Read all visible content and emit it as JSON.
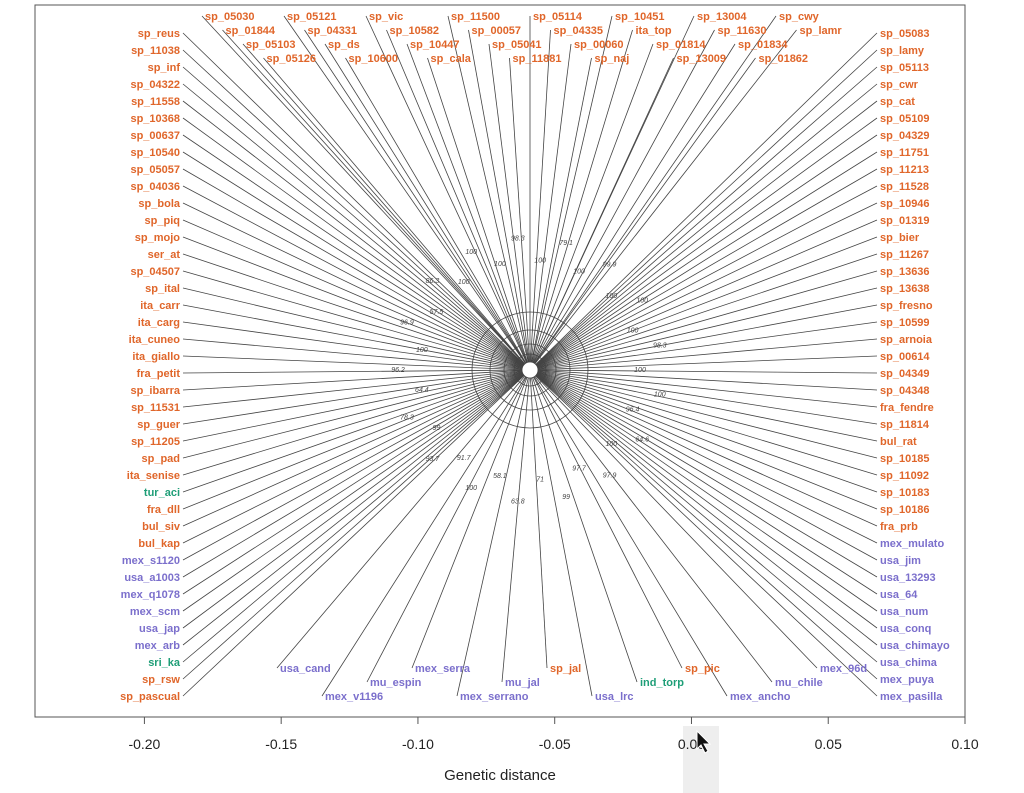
{
  "chart_data": {
    "type": "tree",
    "title": "",
    "xlabel": "Genetic distance",
    "xlim": [
      -0.24,
      0.1
    ],
    "x_ticks": [
      "-0.20",
      "-0.15",
      "-0.10",
      "-0.05",
      "0.00",
      "0.05",
      "0.10"
    ],
    "x_tick_values": [
      -0.2,
      -0.15,
      -0.1,
      -0.05,
      0.0,
      0.05,
      0.1
    ],
    "group_colors": {
      "orange": "#E0662A",
      "purple": "#7B6FCC",
      "green": "#1E9E77"
    },
    "tips": [
      {
        "label": "bul_kap",
        "group": "orange"
      },
      {
        "label": "bul_siv",
        "group": "orange"
      },
      {
        "label": "fra_dll",
        "group": "orange"
      },
      {
        "label": "tur_aci",
        "group": "green"
      },
      {
        "label": "ita_senise",
        "group": "orange"
      },
      {
        "label": "sp_pad",
        "group": "orange"
      },
      {
        "label": "sp_11205",
        "group": "orange"
      },
      {
        "label": "sp_guer",
        "group": "orange"
      },
      {
        "label": "sp_11531",
        "group": "orange"
      },
      {
        "label": "sp_ibarra",
        "group": "orange"
      },
      {
        "label": "fra_petit",
        "group": "orange"
      },
      {
        "label": "ita_giallo",
        "group": "orange"
      },
      {
        "label": "ita_cuneo",
        "group": "orange"
      },
      {
        "label": "ita_carg",
        "group": "orange"
      },
      {
        "label": "ita_carr",
        "group": "orange"
      },
      {
        "label": "sp_ital",
        "group": "orange"
      },
      {
        "label": "sp_04507",
        "group": "orange"
      },
      {
        "label": "ser_at",
        "group": "orange"
      },
      {
        "label": "sp_mojo",
        "group": "orange"
      },
      {
        "label": "sp_piq",
        "group": "orange"
      },
      {
        "label": "sp_bola",
        "group": "orange"
      },
      {
        "label": "sp_04036",
        "group": "orange"
      },
      {
        "label": "sp_05057",
        "group": "orange"
      },
      {
        "label": "sp_10540",
        "group": "orange"
      },
      {
        "label": "sp_00637",
        "group": "orange"
      },
      {
        "label": "sp_10368",
        "group": "orange"
      },
      {
        "label": "sp_11558",
        "group": "orange"
      },
      {
        "label": "sp_04322",
        "group": "orange"
      },
      {
        "label": "sp_inf",
        "group": "orange"
      },
      {
        "label": "sp_11038",
        "group": "orange"
      },
      {
        "label": "sp_reus",
        "group": "orange"
      },
      {
        "label": "sp_05030",
        "group": "orange"
      },
      {
        "label": "sp_01844",
        "group": "orange"
      },
      {
        "label": "sp_05103",
        "group": "orange"
      },
      {
        "label": "sp_05126",
        "group": "orange"
      },
      {
        "label": "sp_05121",
        "group": "orange"
      },
      {
        "label": "sp_04331",
        "group": "orange"
      },
      {
        "label": "sp_ds",
        "group": "orange"
      },
      {
        "label": "sp_10600",
        "group": "orange"
      },
      {
        "label": "sp_vic",
        "group": "orange"
      },
      {
        "label": "sp_10582",
        "group": "orange"
      },
      {
        "label": "sp_10447",
        "group": "orange"
      },
      {
        "label": "sp_cala",
        "group": "orange"
      },
      {
        "label": "sp_11500",
        "group": "orange"
      },
      {
        "label": "sp_00057",
        "group": "orange"
      },
      {
        "label": "sp_05041",
        "group": "orange"
      },
      {
        "label": "sp_11881",
        "group": "orange"
      },
      {
        "label": "sp_05114",
        "group": "orange"
      },
      {
        "label": "sp_04335",
        "group": "orange"
      },
      {
        "label": "sp_00060",
        "group": "orange"
      },
      {
        "label": "sp_naj",
        "group": "orange"
      },
      {
        "label": "sp_10451",
        "group": "orange"
      },
      {
        "label": "ita_top",
        "group": "orange"
      },
      {
        "label": "sp_01814",
        "group": "orange"
      },
      {
        "label": "sp_13009",
        "group": "orange"
      },
      {
        "label": "sp_13004",
        "group": "orange"
      },
      {
        "label": "sp_11630",
        "group": "orange"
      },
      {
        "label": "sp_01834",
        "group": "orange"
      },
      {
        "label": "sp_01862",
        "group": "orange"
      },
      {
        "label": "sp_cwy",
        "group": "orange"
      },
      {
        "label": "sp_lamr",
        "group": "orange"
      },
      {
        "label": "sp_05083",
        "group": "orange"
      },
      {
        "label": "sp_lamy",
        "group": "orange"
      },
      {
        "label": "sp_05113",
        "group": "orange"
      },
      {
        "label": "sp_cwr",
        "group": "orange"
      },
      {
        "label": "sp_cat",
        "group": "orange"
      },
      {
        "label": "sp_05109",
        "group": "orange"
      },
      {
        "label": "sp_04329",
        "group": "orange"
      },
      {
        "label": "sp_11751",
        "group": "orange"
      },
      {
        "label": "sp_11213",
        "group": "orange"
      },
      {
        "label": "sp_11528",
        "group": "orange"
      },
      {
        "label": "sp_10946",
        "group": "orange"
      },
      {
        "label": "sp_01319",
        "group": "orange"
      },
      {
        "label": "sp_bier",
        "group": "orange"
      },
      {
        "label": "sp_11267",
        "group": "orange"
      },
      {
        "label": "sp_13636",
        "group": "orange"
      },
      {
        "label": "sp_13638",
        "group": "orange"
      },
      {
        "label": "sp_fresno",
        "group": "orange"
      },
      {
        "label": "sp_10599",
        "group": "orange"
      },
      {
        "label": "sp_arnoia",
        "group": "orange"
      },
      {
        "label": "sp_00614",
        "group": "orange"
      },
      {
        "label": "sp_04349",
        "group": "orange"
      },
      {
        "label": "sp_04348",
        "group": "orange"
      },
      {
        "label": "fra_fendre",
        "group": "orange"
      },
      {
        "label": "sp_11814",
        "group": "orange"
      },
      {
        "label": "bul_rat",
        "group": "orange"
      },
      {
        "label": "sp_10185",
        "group": "orange"
      },
      {
        "label": "sp_11092",
        "group": "orange"
      },
      {
        "label": "sp_10183",
        "group": "orange"
      },
      {
        "label": "sp_10186",
        "group": "orange"
      },
      {
        "label": "fra_prb",
        "group": "orange"
      },
      {
        "label": "mex_mulato",
        "group": "purple"
      },
      {
        "label": "usa_jim",
        "group": "purple"
      },
      {
        "label": "usa_13293",
        "group": "purple"
      },
      {
        "label": "usa_64",
        "group": "purple"
      },
      {
        "label": "usa_num",
        "group": "purple"
      },
      {
        "label": "usa_conq",
        "group": "purple"
      },
      {
        "label": "usa_chimayo",
        "group": "purple"
      },
      {
        "label": "usa_chima",
        "group": "purple"
      },
      {
        "label": "mex_puya",
        "group": "purple"
      },
      {
        "label": "mex_pasilla",
        "group": "purple"
      },
      {
        "label": "mex_96d",
        "group": "purple"
      },
      {
        "label": "mu_chile",
        "group": "purple"
      },
      {
        "label": "mex_ancho",
        "group": "purple"
      },
      {
        "label": "sp_pic",
        "group": "orange"
      },
      {
        "label": "ind_torp",
        "group": "green"
      },
      {
        "label": "usa_lrc",
        "group": "purple"
      },
      {
        "label": "sp_jal",
        "group": "orange"
      },
      {
        "label": "mu_jal",
        "group": "purple"
      },
      {
        "label": "mex_serrano",
        "group": "purple"
      },
      {
        "label": "mex_serra",
        "group": "purple"
      },
      {
        "label": "mu_espin",
        "group": "purple"
      },
      {
        "label": "mex_v1196",
        "group": "purple"
      },
      {
        "label": "usa_cand",
        "group": "purple"
      },
      {
        "label": "sp_pascual",
        "group": "orange"
      },
      {
        "label": "sp_rsw",
        "group": "orange"
      },
      {
        "label": "sri_ka",
        "group": "green"
      },
      {
        "label": "mex_arb",
        "group": "purple"
      },
      {
        "label": "usa_jap",
        "group": "purple"
      },
      {
        "label": "mex_scm",
        "group": "purple"
      },
      {
        "label": "mex_q1078",
        "group": "purple"
      },
      {
        "label": "usa_a1003",
        "group": "purple"
      },
      {
        "label": "mex_s1120",
        "group": "purple"
      }
    ],
    "bootstrap": [
      "100",
      "100",
      "96.4",
      "64.6",
      "100",
      "97.9",
      "97.7",
      "99",
      "71",
      "63.8",
      "58.1",
      "100",
      "91.7",
      "93.7",
      "99",
      "78.3",
      "64.4",
      "96.2",
      "100",
      "96.9",
      "57.5",
      "86.3",
      "100",
      "100",
      "100",
      "98.3",
      "100",
      "79.1",
      "100",
      "99.9",
      "100",
      "100",
      "100",
      "98.3"
    ]
  }
}
